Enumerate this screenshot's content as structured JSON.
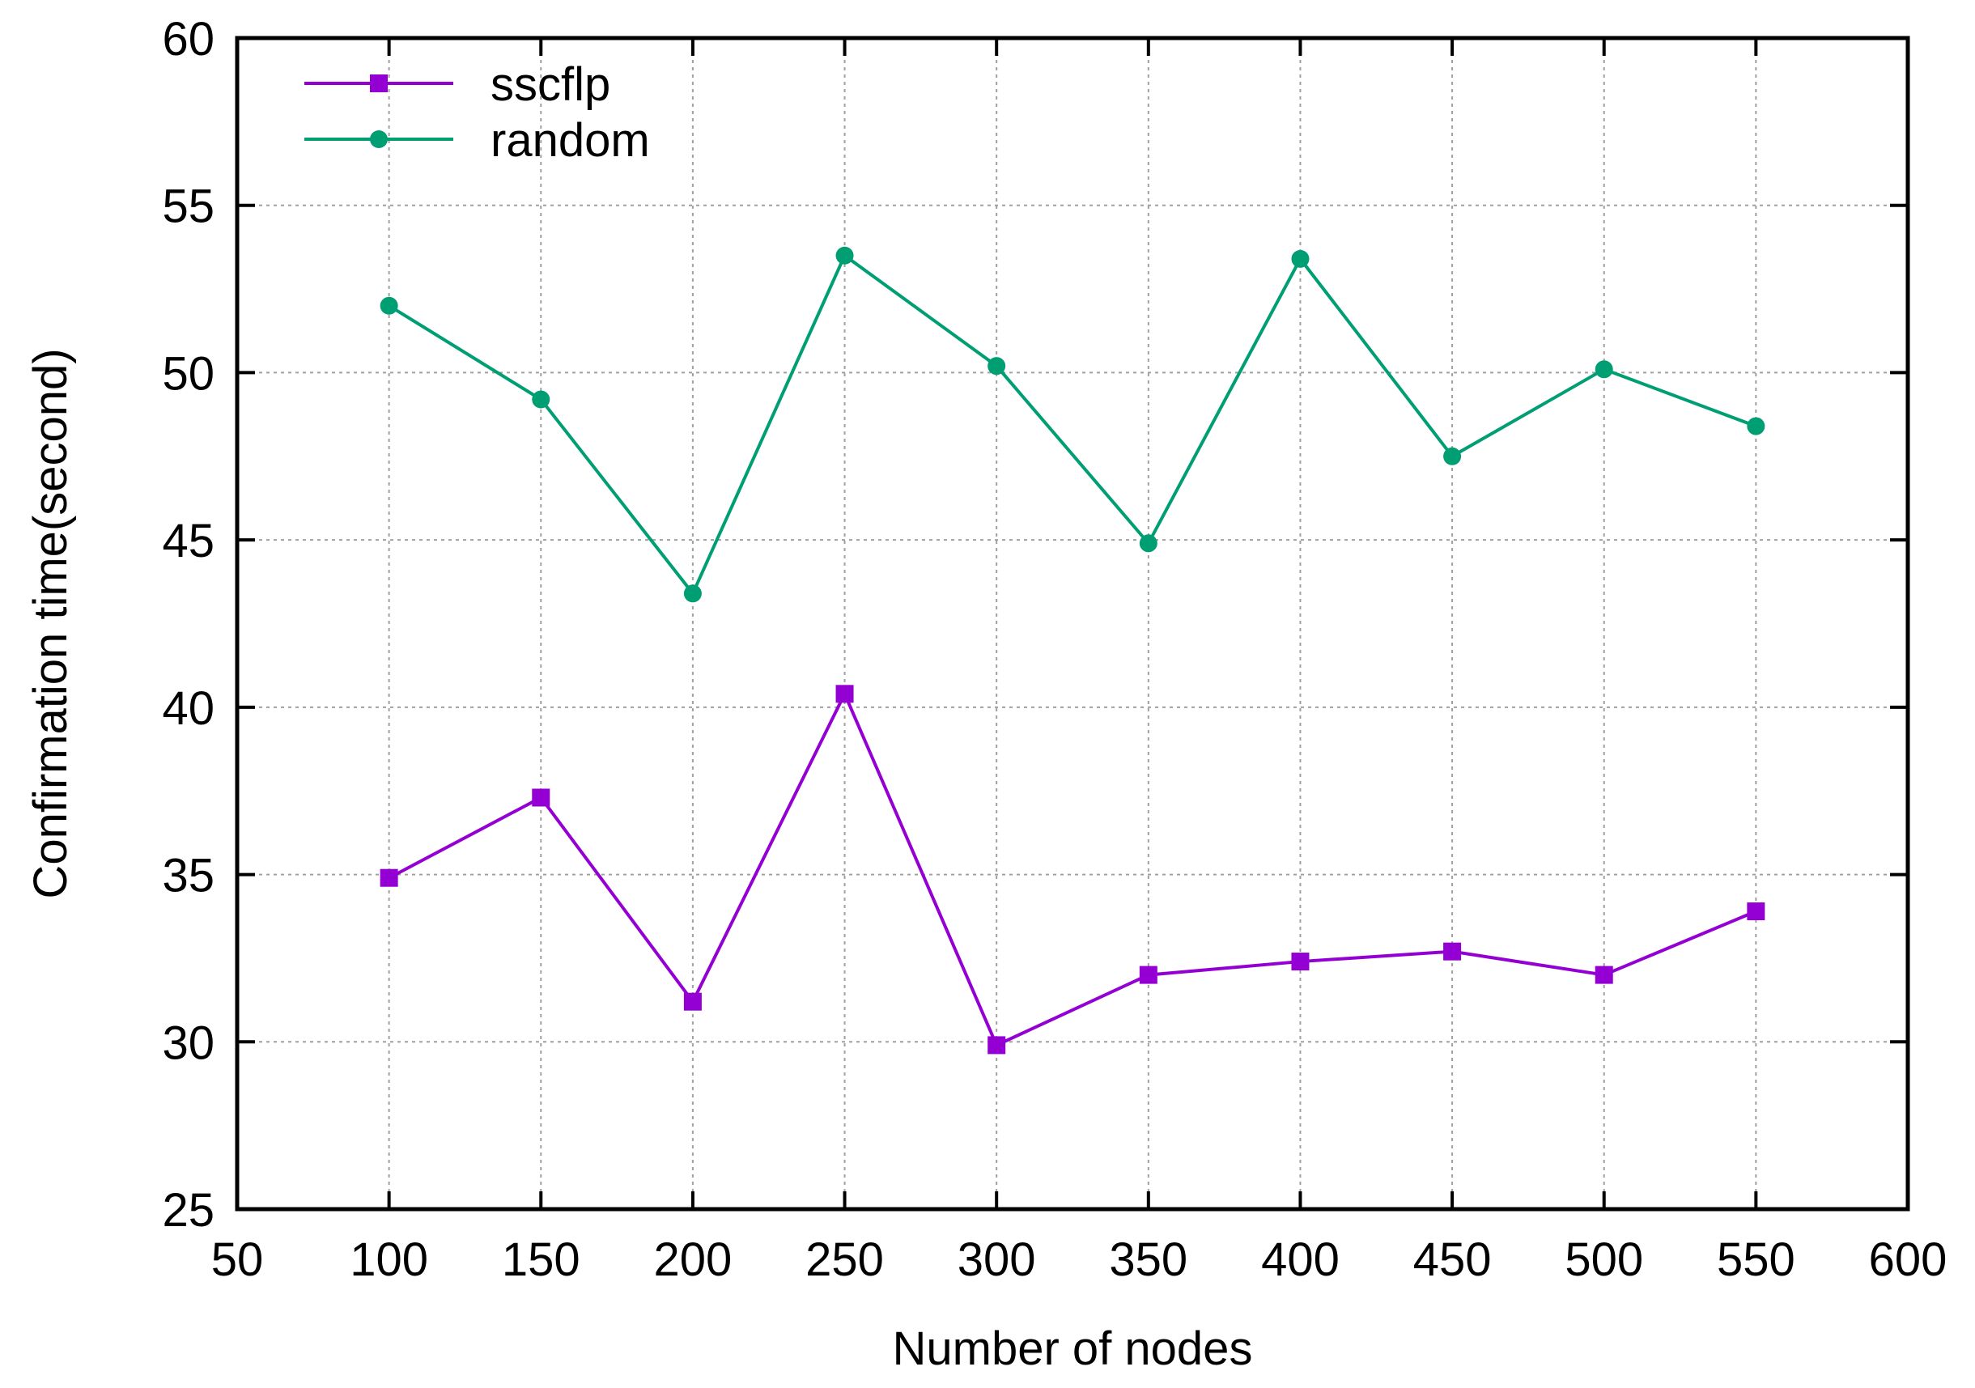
{
  "chart_data": {
    "type": "line",
    "xlabel": "Number of nodes",
    "ylabel": "Confirmation time(second)",
    "xlim": [
      50,
      600
    ],
    "ylim": [
      25,
      60
    ],
    "x_ticks": [
      50,
      100,
      150,
      200,
      250,
      300,
      350,
      400,
      450,
      500,
      550,
      600
    ],
    "y_ticks": [
      25,
      30,
      35,
      40,
      45,
      50,
      55,
      60
    ],
    "grid": true,
    "legend_position": "top-left",
    "x": [
      100,
      150,
      200,
      250,
      300,
      350,
      400,
      450,
      500,
      550
    ],
    "series": [
      {
        "name": "sscflp",
        "color": "#9400d3",
        "marker": "square",
        "values": [
          34.9,
          37.3,
          31.2,
          40.4,
          29.9,
          32.0,
          32.4,
          32.7,
          32.0,
          33.9
        ]
      },
      {
        "name": "random",
        "color": "#009e73",
        "marker": "circle",
        "values": [
          52.0,
          49.2,
          43.4,
          53.5,
          50.2,
          44.9,
          53.4,
          47.5,
          50.1,
          48.4
        ]
      }
    ]
  }
}
